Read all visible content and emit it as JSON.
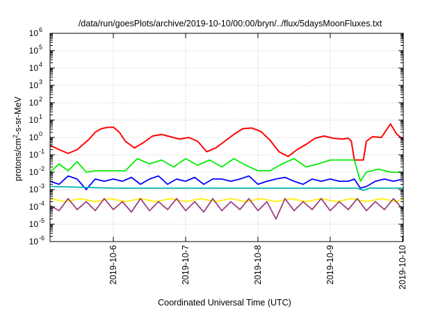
{
  "chart_data": {
    "type": "line",
    "title": "/data/run/goesPlots/archive/2019-10-10/00:00/bryn/../flux/5daysMoonFluxes.txt",
    "xlabel": "Coordinated Universal Time (UTC)",
    "ylabel": {
      "base": "protons/cm",
      "exp": "2",
      "rest": "-s-sr-MeV"
    },
    "yscale": "log",
    "ylim": [
      1e-06,
      1000000.0
    ],
    "yticks": [
      {
        "base": "10",
        "exp": "-6"
      },
      {
        "base": "10",
        "exp": "-5"
      },
      {
        "base": "10",
        "exp": "-4"
      },
      {
        "base": "10",
        "exp": "-3"
      },
      {
        "base": "10",
        "exp": "-2"
      },
      {
        "base": "10",
        "exp": "-1"
      },
      {
        "base": "10",
        "exp": "0"
      },
      {
        "base": "10",
        "exp": "1"
      },
      {
        "base": "10",
        "exp": "2"
      },
      {
        "base": "10",
        "exp": "3"
      },
      {
        "base": "10",
        "exp": "4"
      },
      {
        "base": "10",
        "exp": "5"
      },
      {
        "base": "10",
        "exp": "6"
      }
    ],
    "xlim": [
      "2019-10-05 03:00",
      "2019-10-10 00:15"
    ],
    "xticks": [
      "2019-10-6",
      "2019-10-7",
      "2019-10-8",
      "2019-10-9",
      "2019-10-10"
    ],
    "grid": true,
    "legend": "none",
    "series": [
      {
        "color": "#ff0000",
        "x": [
          "2019-10-05 03:00",
          "2019-10-05 06:00",
          "2019-10-05 09:00",
          "2019-10-05 12:00",
          "2019-10-05 14:00",
          "2019-10-05 16:00",
          "2019-10-05 18:00",
          "2019-10-05 20:00",
          "2019-10-05 22:00",
          "2019-10-06 00:00",
          "2019-10-06 02:00",
          "2019-10-06 04:00",
          "2019-10-06 07:00",
          "2019-10-06 10:00",
          "2019-10-06 13:00",
          "2019-10-06 16:00",
          "2019-10-06 19:00",
          "2019-10-06 22:00",
          "2019-10-07 01:00",
          "2019-10-07 04:00",
          "2019-10-07 07:00",
          "2019-10-07 10:00",
          "2019-10-07 13:00",
          "2019-10-07 16:00",
          "2019-10-07 19:00",
          "2019-10-07 22:00",
          "2019-10-08 01:00",
          "2019-10-08 04:00",
          "2019-10-08 07:00",
          "2019-10-08 10:00",
          "2019-10-08 13:00",
          "2019-10-08 16:00",
          "2019-10-08 19:00",
          "2019-10-08 22:00",
          "2019-10-09 01:00",
          "2019-10-09 04:00",
          "2019-10-09 06:00",
          "2019-10-09 07:00",
          "2019-10-09 08:00",
          "2019-10-09 09:00",
          "2019-10-09 10:00",
          "2019-10-09 11:00",
          "2019-10-09 12:00",
          "2019-10-09 14:00",
          "2019-10-09 17:00",
          "2019-10-09 20:00",
          "2019-10-09 22:00",
          "2019-10-10 00:15"
        ],
        "values": [
          0.35,
          0.2,
          0.12,
          0.2,
          0.4,
          0.8,
          2.0,
          3.2,
          3.8,
          3.9,
          2.0,
          0.6,
          0.25,
          0.5,
          1.2,
          1.5,
          1.1,
          0.8,
          1.0,
          0.6,
          0.15,
          0.25,
          0.6,
          1.5,
          3.2,
          3.5,
          2.2,
          0.7,
          0.15,
          0.08,
          0.2,
          0.4,
          0.9,
          1.2,
          0.9,
          0.8,
          0.9,
          0.6,
          0.05,
          0.05,
          0.05,
          0.05,
          0.6,
          1.1,
          1.0,
          6.0,
          1.6,
          0.75
        ]
      },
      {
        "color": "#00ee00",
        "x": [
          "2019-10-05 03:00",
          "2019-10-05 06:00",
          "2019-10-05 09:00",
          "2019-10-05 12:00",
          "2019-10-05 15:00",
          "2019-10-05 18:00",
          "2019-10-05 21:00",
          "2019-10-06 00:00",
          "2019-10-06 04:00",
          "2019-10-06 08:00",
          "2019-10-06 12:00",
          "2019-10-06 16:00",
          "2019-10-06 20:00",
          "2019-10-07 00:00",
          "2019-10-07 04:00",
          "2019-10-07 08:00",
          "2019-10-07 12:00",
          "2019-10-07 16:00",
          "2019-10-07 20:00",
          "2019-10-08 00:00",
          "2019-10-08 04:00",
          "2019-10-08 08:00",
          "2019-10-08 12:00",
          "2019-10-08 16:00",
          "2019-10-08 20:00",
          "2019-10-09 00:00",
          "2019-10-09 04:00",
          "2019-10-09 08:00",
          "2019-10-09 10:00",
          "2019-10-09 12:00",
          "2019-10-09 16:00",
          "2019-10-09 20:00",
          "2019-10-10 00:15"
        ],
        "values": [
          0.01,
          0.03,
          0.012,
          0.04,
          0.01,
          0.012,
          0.012,
          0.012,
          0.012,
          0.06,
          0.03,
          0.05,
          0.02,
          0.06,
          0.025,
          0.05,
          0.02,
          0.06,
          0.025,
          0.012,
          0.012,
          0.03,
          0.06,
          0.02,
          0.03,
          0.05,
          0.05,
          0.05,
          0.003,
          0.01,
          0.015,
          0.01,
          0.01
        ]
      },
      {
        "color": "#0000ff",
        "x": [
          "2019-10-05 03:00",
          "2019-10-05 06:00",
          "2019-10-05 09:00",
          "2019-10-05 12:00",
          "2019-10-05 15:00",
          "2019-10-05 18:00",
          "2019-10-05 21:00",
          "2019-10-06 00:00",
          "2019-10-06 03:00",
          "2019-10-06 06:00",
          "2019-10-06 09:00",
          "2019-10-06 12:00",
          "2019-10-06 15:00",
          "2019-10-06 18:00",
          "2019-10-06 21:00",
          "2019-10-07 00:00",
          "2019-10-07 03:00",
          "2019-10-07 06:00",
          "2019-10-07 09:00",
          "2019-10-07 12:00",
          "2019-10-07 15:00",
          "2019-10-07 18:00",
          "2019-10-07 21:00",
          "2019-10-08 00:00",
          "2019-10-08 03:00",
          "2019-10-08 06:00",
          "2019-10-08 09:00",
          "2019-10-08 12:00",
          "2019-10-08 15:00",
          "2019-10-08 18:00",
          "2019-10-08 21:00",
          "2019-10-09 00:00",
          "2019-10-09 03:00",
          "2019-10-09 06:00",
          "2019-10-09 08:00",
          "2019-10-09 10:00",
          "2019-10-09 12:00",
          "2019-10-09 15:00",
          "2019-10-09 18:00",
          "2019-10-09 21:00",
          "2019-10-10 00:15"
        ],
        "values": [
          0.003,
          0.002,
          0.006,
          0.004,
          0.001,
          0.004,
          0.003,
          0.004,
          0.003,
          0.005,
          0.002,
          0.004,
          0.006,
          0.002,
          0.004,
          0.003,
          0.005,
          0.002,
          0.004,
          0.004,
          0.003,
          0.004,
          0.006,
          0.002,
          0.003,
          0.004,
          0.005,
          0.003,
          0.002,
          0.004,
          0.003,
          0.004,
          0.003,
          0.003,
          0.004,
          0.0012,
          0.0015,
          0.003,
          0.004,
          0.003,
          0.004
        ]
      },
      {
        "color": "#00b6b6",
        "x": [
          "2019-10-05 03:00",
          "2019-10-06 00:00",
          "2019-10-07 00:00",
          "2019-10-08 00:00",
          "2019-10-09 00:00",
          "2019-10-09 09:00",
          "2019-10-09 11:00",
          "2019-10-09 13:00",
          "2019-10-10 00:15"
        ],
        "values": [
          0.0015,
          0.0012,
          0.0012,
          0.0012,
          0.0012,
          0.0012,
          0.0009,
          0.0012,
          0.0012
        ]
      },
      {
        "color": "#ffee00",
        "x": [
          "2019-10-05 03:00",
          "2019-10-05 08:00",
          "2019-10-05 13:00",
          "2019-10-05 18:00",
          "2019-10-05 23:00",
          "2019-10-06 04:00",
          "2019-10-06 09:00",
          "2019-10-06 14:00",
          "2019-10-06 19:00",
          "2019-10-07 00:00",
          "2019-10-07 05:00",
          "2019-10-07 10:00",
          "2019-10-07 15:00",
          "2019-10-07 20:00",
          "2019-10-08 01:00",
          "2019-10-08 06:00",
          "2019-10-08 11:00",
          "2019-10-08 16:00",
          "2019-10-08 21:00",
          "2019-10-09 02:00",
          "2019-10-09 07:00",
          "2019-10-09 12:00",
          "2019-10-09 17:00",
          "2019-10-09 22:00",
          "2019-10-10 00:15"
        ],
        "values": [
          0.0003,
          0.0002,
          0.0003,
          0.0002,
          0.0003,
          0.0002,
          0.0003,
          0.0002,
          0.0003,
          0.0002,
          0.0003,
          0.0002,
          0.0003,
          0.0002,
          0.0003,
          0.0002,
          0.0003,
          0.0002,
          0.0003,
          0.0002,
          0.0003,
          0.0002,
          0.0003,
          0.0002,
          0.0003
        ]
      },
      {
        "color": "#994080",
        "x": [
          "2019-10-05 03:00",
          "2019-10-05 06:00",
          "2019-10-05 09:00",
          "2019-10-05 12:00",
          "2019-10-05 15:00",
          "2019-10-05 18:00",
          "2019-10-05 21:00",
          "2019-10-06 00:00",
          "2019-10-06 03:00",
          "2019-10-06 06:00",
          "2019-10-06 09:00",
          "2019-10-06 12:00",
          "2019-10-06 15:00",
          "2019-10-06 18:00",
          "2019-10-06 21:00",
          "2019-10-07 00:00",
          "2019-10-07 03:00",
          "2019-10-07 06:00",
          "2019-10-07 09:00",
          "2019-10-07 12:00",
          "2019-10-07 15:00",
          "2019-10-07 18:00",
          "2019-10-07 21:00",
          "2019-10-08 00:00",
          "2019-10-08 03:00",
          "2019-10-08 06:00",
          "2019-10-08 09:00",
          "2019-10-08 12:00",
          "2019-10-08 15:00",
          "2019-10-08 18:00",
          "2019-10-08 21:00",
          "2019-10-09 00:00",
          "2019-10-09 03:00",
          "2019-10-09 06:00",
          "2019-10-09 09:00",
          "2019-10-09 12:00",
          "2019-10-09 15:00",
          "2019-10-09 18:00",
          "2019-10-09 21:00",
          "2019-10-10 00:15"
        ],
        "values": [
          0.00012,
          6e-05,
          0.0003,
          7e-05,
          0.0002,
          6e-05,
          0.0003,
          7e-05,
          0.0002,
          5e-05,
          0.0003,
          6e-05,
          0.0002,
          7e-05,
          0.0003,
          6e-05,
          0.0002,
          5e-05,
          0.0003,
          6e-05,
          0.0002,
          7e-05,
          0.0003,
          6e-05,
          0.0002,
          2e-05,
          0.0003,
          6e-05,
          0.0002,
          7e-05,
          0.0003,
          6e-05,
          0.0002,
          7e-05,
          0.0003,
          6e-05,
          0.0002,
          7e-05,
          0.0003,
          7e-05
        ]
      }
    ]
  }
}
